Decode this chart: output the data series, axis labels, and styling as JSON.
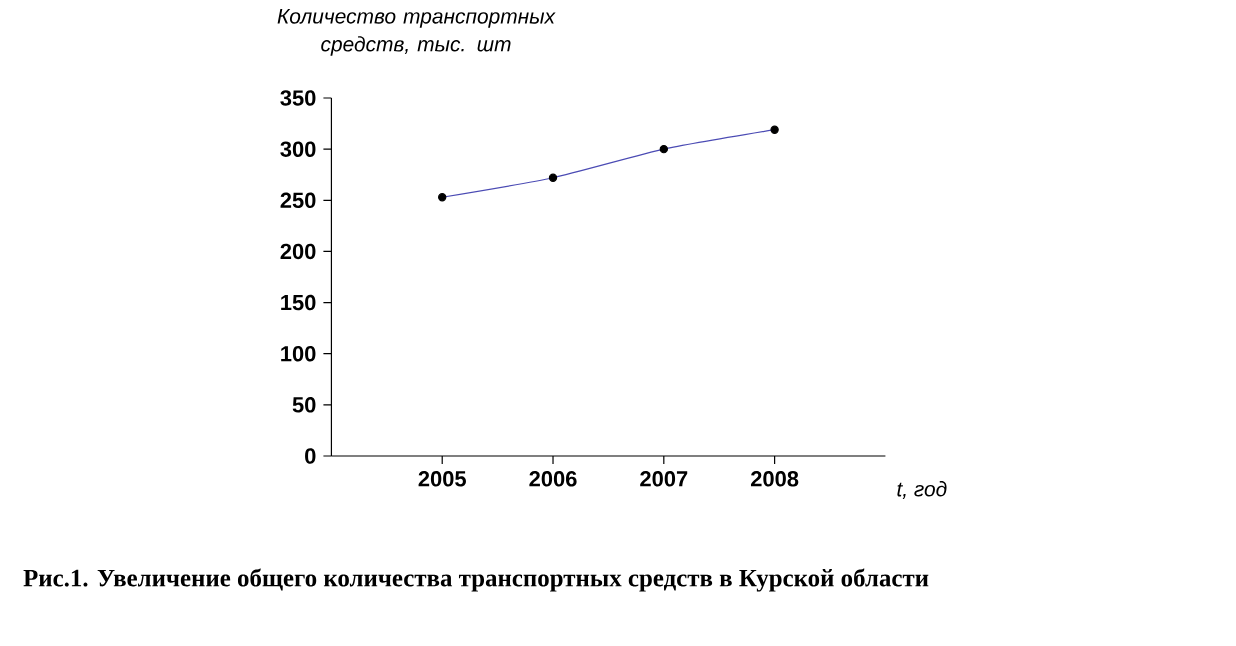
{
  "chart_data": {
    "type": "line",
    "xlabel": "t, год",
    "ylabel": "Количество транспортных средств, тыс. шт",
    "categories": [
      "2005",
      "2006",
      "2007",
      "2008"
    ],
    "series": [
      {
        "color": "#4b4bb4",
        "values": [
          253,
          272,
          300,
          319
        ]
      }
    ],
    "ylim": [
      0,
      350
    ],
    "yticks": [
      0,
      50,
      100,
      150,
      200,
      250,
      300,
      350
    ],
    "marker": "circle",
    "grid": false,
    "annotations": [
      "Рис.1. Увеличение общего количества транспортных средств в Курской области"
    ]
  }
}
